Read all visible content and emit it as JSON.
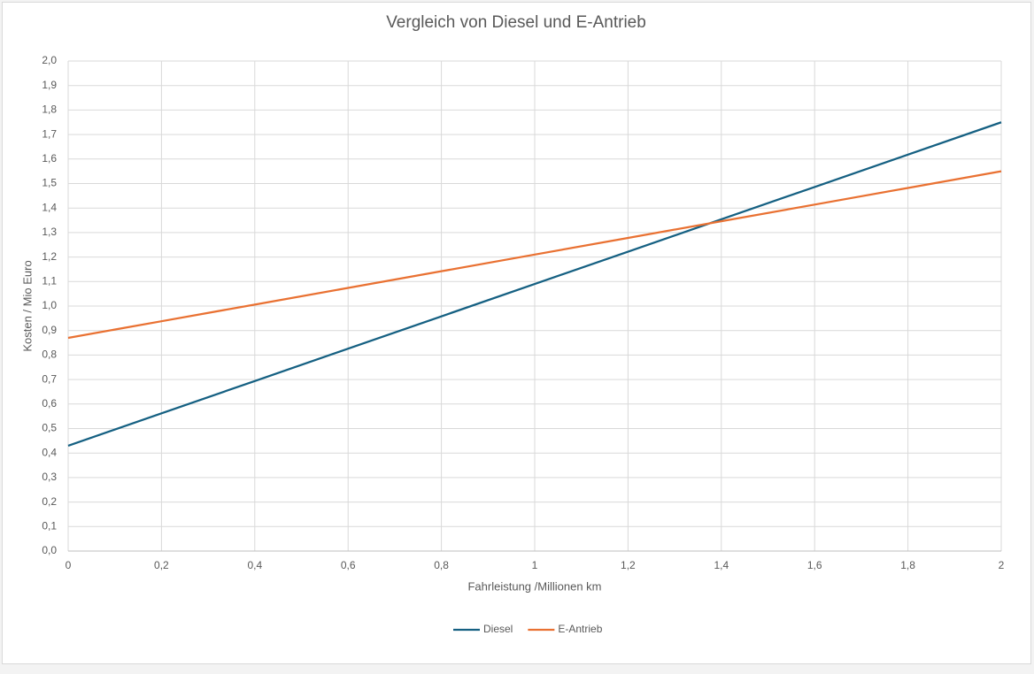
{
  "chart_data": {
    "type": "line",
    "title": "Vergleich von Diesel und E-Antrieb",
    "x_label": "Fahrleistung /Millionen km",
    "y_label": "Kosten / Mio Euro",
    "x": [
      0,
      0.2,
      0.4,
      0.6,
      0.8,
      1,
      1.2,
      1.4,
      1.6,
      1.8,
      2
    ],
    "series": [
      {
        "name": "Diesel",
        "color": "#156082",
        "values": [
          0.43,
          0.562,
          0.694,
          0.826,
          0.958,
          1.09,
          1.222,
          1.354,
          1.486,
          1.618,
          1.75
        ]
      },
      {
        "name": "E-Antrieb",
        "color": "#e97132",
        "values": [
          0.87,
          0.938,
          1.006,
          1.074,
          1.142,
          1.21,
          1.278,
          1.346,
          1.414,
          1.482,
          1.55
        ]
      }
    ],
    "xlim": [
      0,
      2
    ],
    "xticks": [
      0,
      {
        "value": 0.2,
        "label": "0,2"
      },
      {
        "value": 0.4,
        "label": "0,4"
      },
      {
        "value": 0.6,
        "label": "0,6"
      },
      {
        "value": 0.8,
        "label": "0,8"
      },
      1,
      {
        "value": 1.2,
        "label": "1,2"
      },
      {
        "value": 1.4,
        "label": "1,4"
      },
      {
        "value": 1.6,
        "label": "1,6"
      },
      {
        "value": 1.8,
        "label": "1,8"
      },
      2
    ],
    "ylim": [
      0,
      2
    ],
    "yticks": [
      {
        "value": 0,
        "label": "0,0"
      },
      {
        "value": 0.1,
        "label": "0,1"
      },
      {
        "value": 0.2,
        "label": "0,2"
      },
      {
        "value": 0.3,
        "label": "0,3"
      },
      {
        "value": 0.4,
        "label": "0,4"
      },
      {
        "value": 0.5,
        "label": "0,5"
      },
      {
        "value": 0.6,
        "label": "0,6"
      },
      {
        "value": 0.7,
        "label": "0,7"
      },
      {
        "value": 0.8,
        "label": "0,8"
      },
      {
        "value": 0.9,
        "label": "0,9"
      },
      {
        "value": 1,
        "label": "1,0"
      },
      {
        "value": 1.1,
        "label": "1,1"
      },
      {
        "value": 1.2,
        "label": "1,2"
      },
      {
        "value": 1.3,
        "label": "1,3"
      },
      {
        "value": 1.4,
        "label": "1,4"
      },
      {
        "value": 1.5,
        "label": "1,5"
      },
      {
        "value": 1.6,
        "label": "1,6"
      },
      {
        "value": 1.7,
        "label": "1,7"
      },
      {
        "value": 1.8,
        "label": "1,8"
      },
      {
        "value": 1.9,
        "label": "1,9"
      },
      {
        "value": 2,
        "label": "2,0"
      }
    ],
    "grid": true,
    "legend": "bottom"
  }
}
